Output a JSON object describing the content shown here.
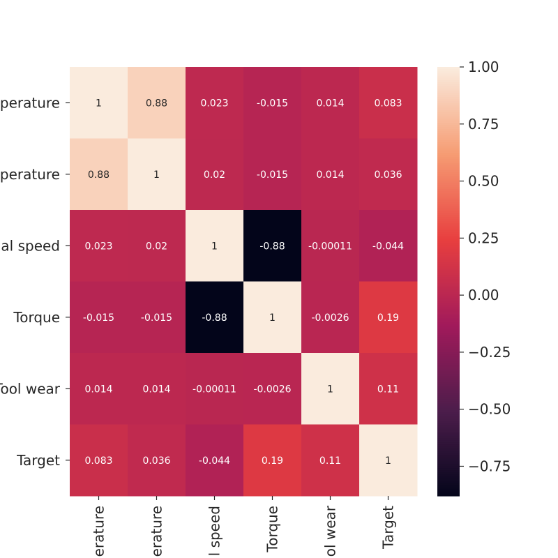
{
  "chart_data": {
    "type": "heatmap",
    "row_labels": [
      "perature",
      "perature",
      "al speed",
      "Torque",
      "Tool wear",
      "Target"
    ],
    "col_labels": [
      "erature",
      "erature",
      "l speed",
      "Torque",
      "ol wear",
      "Target"
    ],
    "values": [
      [
        1,
        0.88,
        0.023,
        -0.015,
        0.014,
        0.083
      ],
      [
        0.88,
        1,
        0.02,
        -0.015,
        0.014,
        0.036
      ],
      [
        0.023,
        0.02,
        1,
        -0.88,
        -0.00011,
        -0.044
      ],
      [
        -0.015,
        -0.015,
        -0.88,
        1,
        -0.0026,
        0.19
      ],
      [
        0.014,
        0.014,
        -0.00011,
        -0.0026,
        1,
        0.11
      ],
      [
        0.083,
        0.036,
        -0.044,
        0.19,
        0.11,
        1
      ]
    ],
    "cell_text": [
      [
        "1",
        "0.88",
        "0.023",
        "-0.015",
        "0.014",
        "0.083"
      ],
      [
        "0.88",
        "1",
        "0.02",
        "-0.015",
        "0.014",
        "0.036"
      ],
      [
        "0.023",
        "0.02",
        "1",
        "-0.88",
        "-0.00011",
        "-0.044"
      ],
      [
        "-0.015",
        "-0.015",
        "-0.88",
        "1",
        "-0.0026",
        "0.19"
      ],
      [
        "0.014",
        "0.014",
        "-0.00011",
        "-0.0026",
        "1",
        "0.11"
      ],
      [
        "0.083",
        "0.036",
        "-0.044",
        "0.19",
        "0.11",
        "1"
      ]
    ],
    "colorbar": {
      "min": -0.88,
      "max": 1.0,
      "ticks": [
        1.0,
        0.75,
        0.5,
        0.25,
        0.0,
        -0.25,
        -0.5,
        -0.75
      ],
      "tick_labels": [
        "1.00",
        "0.75",
        "0.50",
        "0.25",
        "0.00",
        "−0.25",
        "−0.50",
        "−0.75"
      ]
    },
    "colormap": "rocket",
    "colormap_stops": [
      "#03051a",
      "#4c1d4b",
      "#a11a5b",
      "#e83f3f",
      "#f69c73",
      "#faebdd"
    ]
  }
}
